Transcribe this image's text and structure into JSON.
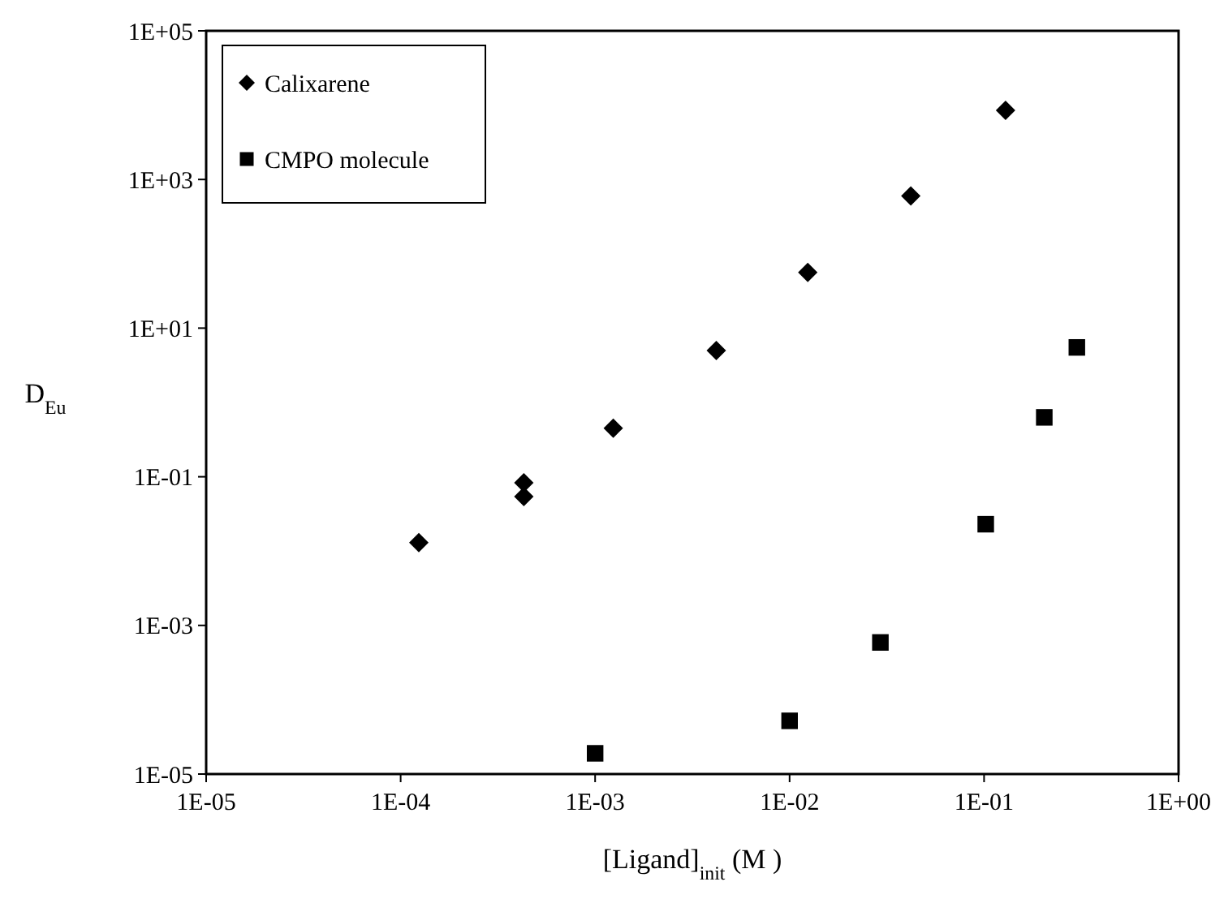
{
  "chart_data": {
    "type": "scatter",
    "xlabel": "[Ligand]$_{init}$ (M )",
    "ylabel": "D$_{Eu}$",
    "log": "xy",
    "xlim": [
      1e-05,
      1
    ],
    "ylim": [
      1e-05,
      100000.0
    ],
    "xticks": [
      {
        "value": 1e-05,
        "label": "1E-05"
      },
      {
        "value": 0.0001,
        "label": "1E-04"
      },
      {
        "value": 0.001,
        "label": "1E-03"
      },
      {
        "value": 0.01,
        "label": "1E-02"
      },
      {
        "value": 0.1,
        "label": "1E-01"
      },
      {
        "value": 1,
        "label": "1E+00"
      }
    ],
    "yticks": [
      {
        "value": 1e-05,
        "label": "1E-05"
      },
      {
        "value": 0.001,
        "label": "1E-03"
      },
      {
        "value": 0.1,
        "label": "1E-01"
      },
      {
        "value": 10,
        "label": "1E+01"
      },
      {
        "value": 1000.0,
        "label": "1E+03"
      },
      {
        "value": 100000.0,
        "label": "1E+05"
      }
    ],
    "grid": false,
    "legend": "top left",
    "series": [
      {
        "name": "Calixarene",
        "color": "#000000",
        "marker": "diamond",
        "x": [
          0.000124,
          0.00043,
          0.00043,
          0.00124,
          0.0042,
          0.0124,
          0.042,
          0.129
        ],
        "values": [
          0.013,
          0.083,
          0.054,
          0.45,
          5,
          56,
          600,
          8500
        ]
      },
      {
        "name": "CMPO molecule",
        "color": "#000000",
        "marker": "square",
        "x": [
          0.001,
          0.01,
          0.0293,
          0.102,
          0.204,
          0.3
        ],
        "values": [
          1.9e-05,
          5.2e-05,
          0.00059,
          0.023,
          0.63,
          5.5
        ]
      }
    ]
  }
}
